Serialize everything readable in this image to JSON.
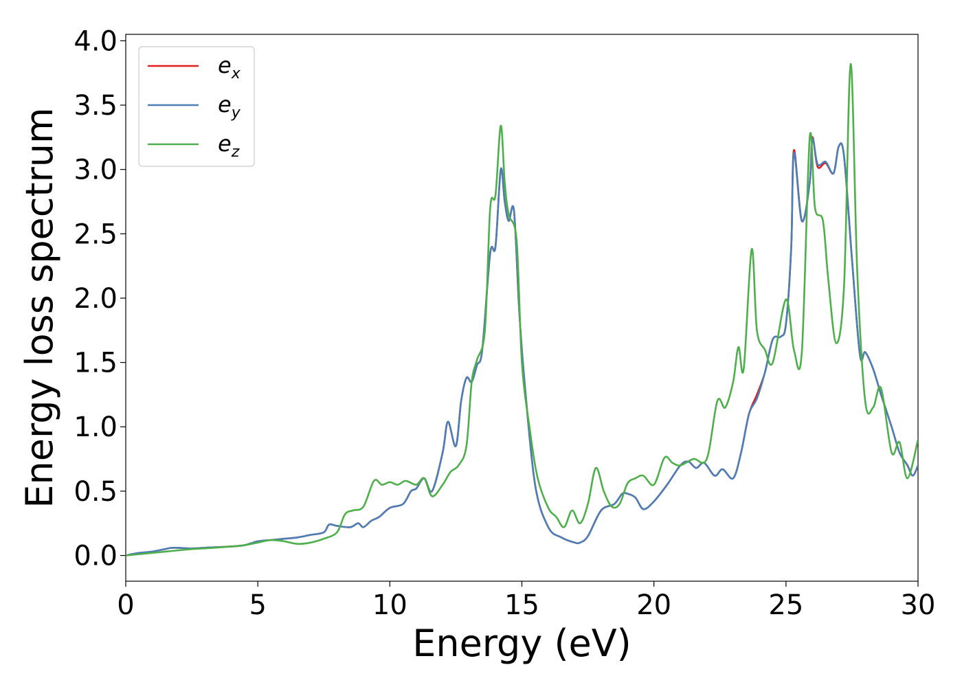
{
  "chart_data": {
    "type": "line",
    "title": "",
    "xlabel": "Energy (eV)",
    "ylabel": "Energy loss spectrum",
    "xlim": [
      0,
      30
    ],
    "ylim": [
      -0.2,
      4.05
    ],
    "xticks": [
      "0",
      "5",
      "10",
      "15",
      "20",
      "25",
      "30"
    ],
    "yticks": [
      "0.0",
      "0.5",
      "1.0",
      "1.5",
      "2.0",
      "2.5",
      "3.0",
      "3.5",
      "4.0"
    ],
    "grid": false,
    "legend_position": "top-left",
    "series": [
      {
        "name": "e_x",
        "label_base": "e",
        "label_sub": "x",
        "color": "#e41a1c",
        "x": [
          0,
          0.5,
          1,
          1.5,
          1.8,
          2.5,
          3,
          4,
          4.5,
          5,
          5.5,
          6,
          6.5,
          7,
          7.5,
          7.7,
          8,
          8.5,
          8.8,
          9,
          9.3,
          9.6,
          10,
          10.5,
          10.8,
          11,
          11.3,
          11.6,
          12,
          12.2,
          12.5,
          12.7,
          12.9,
          13.1,
          13.3,
          13.5,
          13.8,
          14,
          14.2,
          14.35,
          14.5,
          14.7,
          14.9,
          15.1,
          15.5,
          16,
          16.5,
          17,
          17.2,
          17.5,
          18,
          18.5,
          18.8,
          19,
          19.3,
          19.6,
          20,
          20.5,
          21,
          21.3,
          21.6,
          21.9,
          22.3,
          22.6,
          23,
          23.3,
          23.6,
          23.9,
          24.2,
          24.5,
          24.8,
          25,
          25.2,
          25.3,
          25.6,
          25.9,
          26,
          26.2,
          26.5,
          26.8,
          27,
          27.2,
          27.5,
          27.8,
          28,
          28.3,
          28.6,
          29,
          29.3,
          29.6,
          29.8,
          30
        ],
        "y": [
          0,
          0.02,
          0.03,
          0.05,
          0.06,
          0.055,
          0.06,
          0.07,
          0.08,
          0.11,
          0.12,
          0.13,
          0.14,
          0.16,
          0.18,
          0.24,
          0.23,
          0.22,
          0.25,
          0.22,
          0.27,
          0.3,
          0.37,
          0.4,
          0.5,
          0.52,
          0.6,
          0.5,
          0.8,
          1.04,
          0.85,
          1.2,
          1.38,
          1.35,
          1.48,
          1.6,
          2.35,
          2.4,
          3.0,
          2.75,
          2.6,
          2.68,
          1.9,
          1.35,
          0.55,
          0.22,
          0.14,
          0.1,
          0.1,
          0.15,
          0.35,
          0.4,
          0.48,
          0.48,
          0.45,
          0.36,
          0.42,
          0.55,
          0.7,
          0.73,
          0.68,
          0.72,
          0.62,
          0.67,
          0.6,
          0.8,
          1.1,
          1.25,
          1.42,
          1.68,
          1.7,
          1.8,
          2.4,
          3.15,
          2.6,
          2.9,
          3.25,
          3.02,
          3.05,
          2.97,
          3.18,
          3.1,
          2.3,
          1.56,
          1.58,
          1.45,
          1.25,
          1.0,
          0.8,
          0.7,
          0.62,
          0.7
        ]
      },
      {
        "name": "e_y",
        "label_base": "e",
        "label_sub": "y",
        "color": "#4a7fb8",
        "x": [
          0,
          0.5,
          1,
          1.5,
          1.8,
          2.5,
          3,
          4,
          4.5,
          5,
          5.5,
          6,
          6.5,
          7,
          7.5,
          7.7,
          8,
          8.5,
          8.8,
          9,
          9.3,
          9.6,
          10,
          10.5,
          10.8,
          11,
          11.3,
          11.6,
          12,
          12.2,
          12.5,
          12.7,
          12.9,
          13.1,
          13.3,
          13.5,
          13.8,
          14,
          14.2,
          14.35,
          14.5,
          14.7,
          14.9,
          15.1,
          15.5,
          16,
          16.5,
          17,
          17.2,
          17.5,
          18,
          18.5,
          18.8,
          19,
          19.3,
          19.6,
          20,
          20.5,
          21,
          21.3,
          21.6,
          21.9,
          22.3,
          22.6,
          23,
          23.3,
          23.6,
          23.9,
          24.2,
          24.5,
          24.8,
          25,
          25.2,
          25.3,
          25.6,
          25.9,
          26,
          26.2,
          26.5,
          26.8,
          27,
          27.2,
          27.5,
          27.8,
          28,
          28.3,
          28.6,
          29,
          29.3,
          29.6,
          29.8,
          30
        ],
        "y": [
          0,
          0.02,
          0.03,
          0.05,
          0.06,
          0.055,
          0.06,
          0.07,
          0.08,
          0.11,
          0.12,
          0.13,
          0.14,
          0.16,
          0.18,
          0.24,
          0.23,
          0.22,
          0.25,
          0.22,
          0.27,
          0.3,
          0.37,
          0.4,
          0.5,
          0.52,
          0.6,
          0.5,
          0.8,
          1.04,
          0.85,
          1.2,
          1.38,
          1.35,
          1.48,
          1.6,
          2.35,
          2.4,
          3.0,
          2.75,
          2.6,
          2.68,
          1.9,
          1.35,
          0.55,
          0.22,
          0.14,
          0.1,
          0.1,
          0.15,
          0.35,
          0.4,
          0.48,
          0.48,
          0.45,
          0.36,
          0.42,
          0.55,
          0.7,
          0.73,
          0.68,
          0.72,
          0.62,
          0.67,
          0.6,
          0.8,
          1.1,
          1.22,
          1.42,
          1.68,
          1.7,
          1.8,
          2.4,
          3.13,
          2.6,
          2.9,
          3.24,
          3.04,
          3.06,
          2.97,
          3.18,
          3.1,
          2.3,
          1.56,
          1.58,
          1.45,
          1.25,
          1.0,
          0.8,
          0.7,
          0.62,
          0.7
        ]
      },
      {
        "name": "e_z",
        "label_base": "e",
        "label_sub": "z",
        "color": "#4daf4a",
        "x": [
          0,
          0.5,
          1,
          1.5,
          2,
          2.5,
          3,
          4,
          4.5,
          5,
          5.5,
          6,
          6.5,
          7,
          7.5,
          8,
          8.3,
          8.6,
          9,
          9.4,
          9.7,
          10,
          10.3,
          10.6,
          11,
          11.3,
          11.6,
          12,
          12.3,
          12.6,
          12.9,
          13.1,
          13.3,
          13.6,
          13.8,
          14,
          14.2,
          14.35,
          14.5,
          14.8,
          15,
          15.3,
          15.6,
          16,
          16.3,
          16.6,
          16.9,
          17.2,
          17.5,
          17.8,
          18.1,
          18.4,
          18.7,
          19,
          19.3,
          19.6,
          20,
          20.4,
          20.7,
          21,
          21.5,
          22,
          22.4,
          22.7,
          23,
          23.2,
          23.4,
          23.7,
          23.9,
          24.2,
          24.5,
          25,
          25.3,
          25.6,
          25.9,
          26.1,
          26.4,
          26.6,
          26.9,
          27.2,
          27.45,
          27.7,
          28,
          28.3,
          28.6,
          29,
          29.3,
          29.6,
          30
        ],
        "y": [
          0,
          0.01,
          0.02,
          0.03,
          0.04,
          0.05,
          0.055,
          0.07,
          0.08,
          0.1,
          0.12,
          0.11,
          0.09,
          0.1,
          0.13,
          0.18,
          0.32,
          0.35,
          0.38,
          0.58,
          0.55,
          0.57,
          0.55,
          0.58,
          0.55,
          0.6,
          0.46,
          0.55,
          0.65,
          0.7,
          0.85,
          1.35,
          1.52,
          1.75,
          2.7,
          2.8,
          3.34,
          2.9,
          2.65,
          2.45,
          1.5,
          0.98,
          0.6,
          0.37,
          0.3,
          0.22,
          0.35,
          0.25,
          0.4,
          0.68,
          0.5,
          0.38,
          0.4,
          0.56,
          0.6,
          0.62,
          0.55,
          0.76,
          0.72,
          0.7,
          0.75,
          0.75,
          1.2,
          1.15,
          1.35,
          1.62,
          1.45,
          2.38,
          1.75,
          1.6,
          1.5,
          1.99,
          1.6,
          1.58,
          3.25,
          2.7,
          2.6,
          2.15,
          1.65,
          2.1,
          3.82,
          2.2,
          1.2,
          1.15,
          1.3,
          0.8,
          0.88,
          0.6,
          0.9
        ]
      }
    ]
  }
}
